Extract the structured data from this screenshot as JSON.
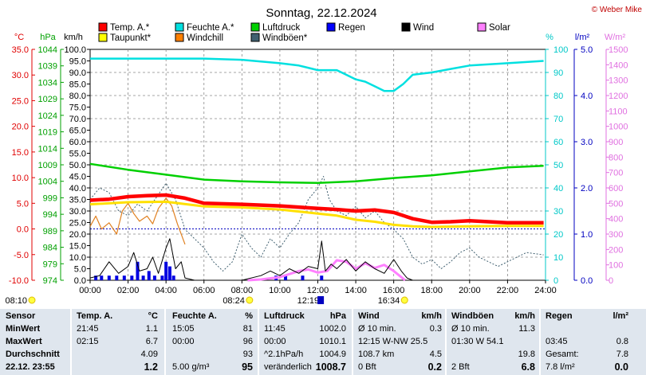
{
  "header": {
    "title": "Sonntag, 22.12.2024",
    "credit": "© Weber Mike",
    "credit_color": "#c00000"
  },
  "chart_data": {
    "type": "line",
    "axes": {
      "temp": {
        "label": "°C",
        "ticks": [
          "35.0",
          "30.0",
          "25.0",
          "20.0",
          "15.0",
          "10.0",
          "5.0",
          "0.0",
          "-5.0",
          "-10.0"
        ],
        "range": [
          -10,
          35
        ],
        "color": "#e00000"
      },
      "pressure": {
        "label": "hPa",
        "ticks": [
          "1044",
          "1039",
          "1034",
          "1029",
          "1024",
          "1019",
          "1014",
          "1009",
          "1004",
          "999",
          "994",
          "989",
          "984",
          "979",
          "974"
        ],
        "range": [
          974,
          1044
        ],
        "color": "#00a000"
      },
      "speed": {
        "label": "km/h",
        "ticks": [
          "100.0",
          "95.0",
          "90.0",
          "85.0",
          "80.0",
          "75.0",
          "70.0",
          "65.0",
          "60.0",
          "55.0",
          "50.0",
          "45.0",
          "40.0",
          "35.0",
          "30.0",
          "25.0",
          "20.0",
          "15.0",
          "10.0",
          "5.0",
          "0.0"
        ],
        "range": [
          0,
          100
        ],
        "color": "#000000"
      },
      "humidity": {
        "label": "%",
        "ticks": [
          "100",
          "90",
          "80",
          "70",
          "60",
          "50",
          "40",
          "30",
          "20",
          "10",
          "0"
        ],
        "range": [
          0,
          100
        ],
        "color": "#00c8c8"
      },
      "rain": {
        "label": "l/m²",
        "ticks": [
          "5.0",
          "4.0",
          "3.0",
          "2.0",
          "1.0",
          "0.0"
        ],
        "range": [
          0,
          5
        ],
        "color": "#0000c0"
      },
      "solar": {
        "label": "W/m²",
        "ticks": [
          "1500",
          "1400",
          "1300",
          "1200",
          "1100",
          "1000",
          "900",
          "800",
          "700",
          "600",
          "500",
          "400",
          "300",
          "200",
          "100",
          "0"
        ],
        "range": [
          0,
          1500
        ],
        "color": "#e070e0"
      }
    },
    "x_ticks": [
      "00:00",
      "02:00",
      "04:00",
      "06:00",
      "08:00",
      "10:00",
      "12:00",
      "14:00",
      "16:00",
      "18:00",
      "20:00",
      "22:00",
      "24:00"
    ],
    "x_range": [
      0,
      24
    ],
    "legend": [
      {
        "name": "Temp. A.*",
        "color": "#ff0000"
      },
      {
        "name": "Feuchte A.*",
        "color": "#00e0e0"
      },
      {
        "name": "Luftdruck",
        "color": "#00d000"
      },
      {
        "name": "Regen",
        "color": "#0000ff"
      },
      {
        "name": "Wind",
        "color": "#000000"
      },
      {
        "name": "Solar",
        "color": "#ff80ff"
      },
      {
        "name": "Taupunkt*",
        "color": "#ffff00"
      },
      {
        "name": "Windchill",
        "color": "#ff8000"
      },
      {
        "name": "Windböen*",
        "color": "#406070"
      }
    ],
    "series": [
      {
        "name": "Temp. A.*",
        "axis": "temp",
        "points": [
          [
            0,
            5.6
          ],
          [
            1,
            5.8
          ],
          [
            2,
            6.3
          ],
          [
            3,
            6.5
          ],
          [
            4,
            6.6
          ],
          [
            5,
            6.0
          ],
          [
            6,
            5.0
          ],
          [
            8,
            4.8
          ],
          [
            10,
            4.5
          ],
          [
            12,
            4.0
          ],
          [
            13,
            3.8
          ],
          [
            14,
            3.5
          ],
          [
            15,
            3.7
          ],
          [
            16,
            3.2
          ],
          [
            17,
            2.0
          ],
          [
            18,
            1.3
          ],
          [
            19,
            1.4
          ],
          [
            20,
            1.6
          ],
          [
            21,
            1.4
          ],
          [
            22,
            1.2
          ],
          [
            23.9,
            1.2
          ]
        ]
      },
      {
        "name": "Taupunkt*",
        "axis": "temp",
        "points": [
          [
            0,
            4.8
          ],
          [
            2,
            5.2
          ],
          [
            4,
            5.3
          ],
          [
            6,
            4.4
          ],
          [
            8,
            4.2
          ],
          [
            10,
            3.8
          ],
          [
            12,
            3.0
          ],
          [
            13,
            2.6
          ],
          [
            14,
            1.8
          ],
          [
            15,
            1.4
          ],
          [
            16,
            0.8
          ],
          [
            17,
            0.5
          ],
          [
            18,
            0.4
          ],
          [
            20,
            0.5
          ],
          [
            22,
            0.6
          ],
          [
            23.9,
            0.6
          ]
        ]
      },
      {
        "name": "Feuchte A.*",
        "axis": "humidity",
        "points": [
          [
            0,
            96
          ],
          [
            4,
            96
          ],
          [
            6,
            96
          ],
          [
            8,
            95.5
          ],
          [
            10,
            94
          ],
          [
            11,
            93
          ],
          [
            12,
            91
          ],
          [
            13,
            91
          ],
          [
            13.5,
            89
          ],
          [
            14,
            87
          ],
          [
            14.5,
            86
          ],
          [
            15,
            84
          ],
          [
            15.5,
            82
          ],
          [
            16,
            82
          ],
          [
            16.5,
            85
          ],
          [
            17,
            89
          ],
          [
            18,
            90
          ],
          [
            19,
            91.5
          ],
          [
            20,
            93
          ],
          [
            22,
            94
          ],
          [
            23.9,
            95
          ]
        ]
      },
      {
        "name": "Luftdruck",
        "axis": "pressure",
        "points": [
          [
            0,
            1009.3
          ],
          [
            2,
            1007.5
          ],
          [
            4,
            1006
          ],
          [
            6,
            1004.5
          ],
          [
            8,
            1004
          ],
          [
            10,
            1003.7
          ],
          [
            12,
            1003.5
          ],
          [
            14,
            1004
          ],
          [
            16,
            1005
          ],
          [
            18,
            1005.8
          ],
          [
            20,
            1007
          ],
          [
            22,
            1008.2
          ],
          [
            23.9,
            1008.7
          ]
        ]
      },
      {
        "name": "Windchill",
        "axis": "temp",
        "points": [
          [
            0,
            0.5
          ],
          [
            0.3,
            2.5
          ],
          [
            0.6,
            0
          ],
          [
            1,
            1.2
          ],
          [
            1.4,
            -1
          ],
          [
            1.7,
            3.5
          ],
          [
            2,
            5
          ],
          [
            2.3,
            3
          ],
          [
            2.6,
            1.5
          ],
          [
            3,
            2.5
          ],
          [
            3.3,
            1
          ],
          [
            3.6,
            4
          ],
          [
            4,
            6
          ],
          [
            4.3,
            4.5
          ],
          [
            4.6,
            1
          ],
          [
            5,
            -3
          ]
        ]
      },
      {
        "name": "Wind",
        "axis": "speed",
        "points": [
          [
            0,
            1
          ],
          [
            0.5,
            2
          ],
          [
            1,
            8
          ],
          [
            1.5,
            3
          ],
          [
            2,
            6
          ],
          [
            2.3,
            12
          ],
          [
            2.6,
            4
          ],
          [
            3,
            5
          ],
          [
            3.3,
            10
          ],
          [
            3.6,
            3
          ],
          [
            4,
            14
          ],
          [
            4.2,
            18
          ],
          [
            4.5,
            5
          ],
          [
            4.8,
            8
          ],
          [
            5,
            1
          ],
          [
            5.5,
            0
          ],
          [
            8,
            0
          ],
          [
            9,
            2
          ],
          [
            9.5,
            4
          ],
          [
            10,
            2
          ],
          [
            10.5,
            5
          ],
          [
            11,
            3
          ],
          [
            11.5,
            6
          ],
          [
            12,
            5
          ],
          [
            12.2,
            17
          ],
          [
            12.4,
            4
          ],
          [
            12.7,
            7
          ],
          [
            13,
            5
          ],
          [
            13.5,
            9
          ],
          [
            14,
            4
          ],
          [
            14.5,
            8
          ],
          [
            15,
            5
          ],
          [
            15.5,
            3
          ],
          [
            16,
            9
          ],
          [
            16.4,
            4
          ],
          [
            16.7,
            1
          ],
          [
            17,
            0
          ],
          [
            23.9,
            0
          ]
        ]
      },
      {
        "name": "Windböen*",
        "axis": "speed",
        "points": [
          [
            0,
            35
          ],
          [
            0.5,
            40
          ],
          [
            1,
            38
          ],
          [
            1.5,
            30
          ],
          [
            2,
            28
          ],
          [
            2.5,
            33
          ],
          [
            3,
            30
          ],
          [
            3.5,
            36
          ],
          [
            4,
            42
          ],
          [
            4.5,
            35
          ],
          [
            5,
            22
          ],
          [
            5.5,
            18
          ],
          [
            6,
            14
          ],
          [
            6.5,
            8
          ],
          [
            7,
            4
          ],
          [
            7.5,
            8
          ],
          [
            8,
            20
          ],
          [
            8.5,
            14
          ],
          [
            9,
            10
          ],
          [
            9.5,
            18
          ],
          [
            10,
            14
          ],
          [
            10.5,
            20
          ],
          [
            11,
            25
          ],
          [
            11.5,
            35
          ],
          [
            12,
            40
          ],
          [
            12.3,
            45
          ],
          [
            12.6,
            35
          ],
          [
            13,
            30
          ],
          [
            13.5,
            28
          ],
          [
            14,
            32
          ],
          [
            14.5,
            27
          ],
          [
            15,
            30
          ],
          [
            15.5,
            25
          ],
          [
            16,
            22
          ],
          [
            16.5,
            18
          ],
          [
            17,
            10
          ],
          [
            17.5,
            7
          ],
          [
            18,
            9
          ],
          [
            18.5,
            5
          ],
          [
            19,
            8
          ],
          [
            19.5,
            12
          ],
          [
            20,
            14
          ],
          [
            20.5,
            10
          ],
          [
            21,
            8
          ],
          [
            21.5,
            6
          ],
          [
            22,
            8
          ],
          [
            22.5,
            10
          ],
          [
            23,
            12
          ],
          [
            23.9,
            11
          ]
        ]
      },
      {
        "name": "Solar",
        "axis": "solar",
        "points": [
          [
            8.3,
            0
          ],
          [
            9,
            5
          ],
          [
            10,
            20
          ],
          [
            11,
            60
          ],
          [
            11.5,
            70
          ],
          [
            12,
            50
          ],
          [
            12.5,
            60
          ],
          [
            13,
            130
          ],
          [
            13.5,
            120
          ],
          [
            14,
            75
          ],
          [
            14.5,
            110
          ],
          [
            15,
            80
          ],
          [
            15.5,
            100
          ],
          [
            16,
            60
          ],
          [
            16.5,
            10
          ],
          [
            16.6,
            0
          ]
        ]
      }
    ],
    "rain_bars": [
      [
        0.3,
        0.2
      ],
      [
        0.6,
        0.2
      ],
      [
        1,
        0.2
      ],
      [
        1.4,
        0.2
      ],
      [
        1.8,
        0.2
      ],
      [
        2.2,
        0.2
      ],
      [
        2.5,
        0.8
      ],
      [
        2.8,
        0.2
      ],
      [
        3.1,
        0.4
      ],
      [
        3.4,
        0.2
      ],
      [
        3.8,
        0.2
      ],
      [
        4.0,
        0.8
      ],
      [
        4.2,
        0.6
      ],
      [
        4.4,
        0.2
      ],
      [
        9.8,
        0.2
      ],
      [
        10.3,
        0.2
      ],
      [
        11.2,
        0.2
      ],
      [
        12.2,
        0.2
      ]
    ],
    "freezing_line": 0,
    "markers": [
      {
        "label": "08:10",
        "type": "sunrise"
      },
      {
        "label": "08:24",
        "type": "sunrise"
      },
      {
        "label": "12:19",
        "type": "noon"
      },
      {
        "label": "16:34",
        "type": "sunset"
      }
    ],
    "grid": true
  },
  "table": {
    "rows": [
      [
        "Sensor",
        "Temp. A.",
        "°C",
        "Feuchte A.",
        "%",
        "Luftdruck",
        "hPa",
        "Wind",
        "km/h",
        "Windböen",
        "km/h",
        "Regen",
        "l/m²"
      ],
      [
        "MinWert",
        "21:45",
        "1.1",
        "15:05",
        "81",
        "11:45",
        "1002.0",
        "Ø 10 min.",
        "0.3",
        "Ø 10 min.",
        "11.3",
        "",
        ""
      ],
      [
        "MaxWert",
        "02:15",
        "6.7",
        "00:00",
        "96",
        "00:00",
        "1010.1",
        "12:15  W-NW 25.5",
        "",
        "01:30  W 54.1",
        "",
        "03:45",
        "0.8"
      ],
      [
        "Durchschnitt",
        "",
        "4.09",
        "",
        "93",
        "^2.1hPa/h",
        "1004.9",
        "108.7 km",
        "4.5",
        "",
        "19.8",
        "Gesamt:",
        "7.8"
      ],
      [
        "22.12.  23:55",
        "",
        "1.2",
        "5.00 g/m³",
        "95",
        "veränderlich",
        "1008.7",
        "0 Bft",
        "0.2",
        "2 Bft",
        "6.8",
        "7.8 l/m²",
        "0.0"
      ]
    ]
  }
}
